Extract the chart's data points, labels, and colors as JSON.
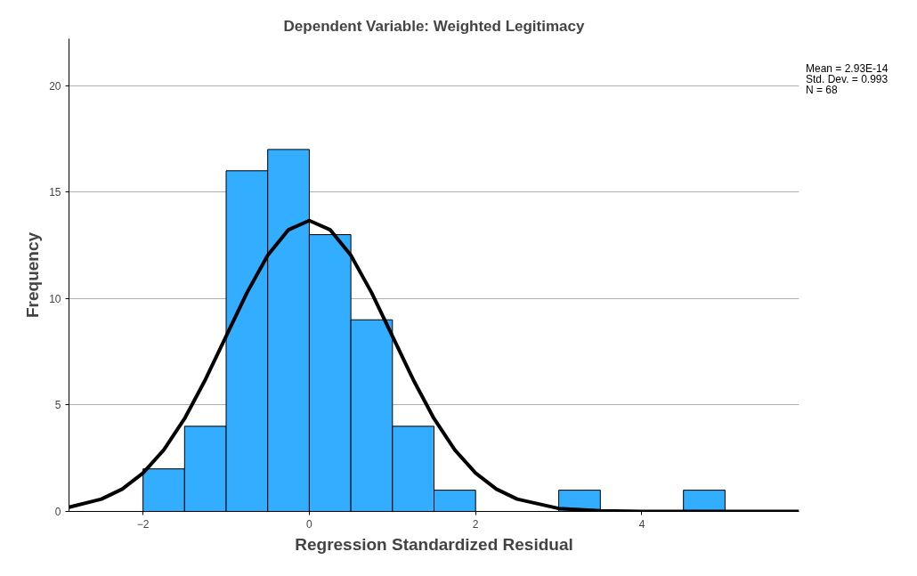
{
  "chart_data": {
    "type": "histogram",
    "title": "Dependent Variable: Weighted Legitimacy",
    "xlabel": "Regression Standardized Residual",
    "ylabel": "Frequency",
    "bins": [
      -2,
      -1.5,
      -1,
      -0.5,
      0,
      0.5,
      1,
      1.5,
      2,
      2.5,
      3,
      3.5,
      4,
      4.5,
      5
    ],
    "values": [
      2,
      4,
      16,
      17,
      13,
      9,
      4,
      1,
      0,
      0,
      1,
      0,
      0,
      1
    ],
    "color": "#33adff",
    "series": [
      {
        "type": "line",
        "color": "#000000",
        "x": [
          -2.89,
          -2.5,
          -2.25,
          -2,
          -1.75,
          -1.5,
          -1.25,
          -1,
          -0.75,
          -0.5,
          -0.25,
          0,
          0.25,
          0.5,
          0.75,
          1,
          1.25,
          1.5,
          1.75,
          2,
          2.25,
          2.5,
          3,
          3.5,
          4,
          5,
          5.89
        ],
        "values": [
          0.2,
          0.58,
          1.05,
          1.8,
          2.89,
          4.36,
          6.19,
          8.23,
          10.27,
          12.03,
          13.23,
          13.66,
          13.23,
          12.03,
          10.27,
          8.23,
          6.19,
          4.36,
          2.89,
          1.8,
          1.05,
          0.58,
          0.14,
          0.03,
          0.0,
          0.0,
          0.0
        ]
      }
    ],
    "xlim": [
      -2.89,
      5.89
    ],
    "ylim": [
      0,
      22.2
    ],
    "xticks": [
      -2,
      0,
      2,
      4
    ],
    "yticks": [
      0,
      5,
      10,
      15,
      20
    ],
    "grid": "y",
    "annotations": [
      "Mean = 2.93E-14",
      "Std. Dev. = 0.993",
      "N = 68"
    ]
  }
}
